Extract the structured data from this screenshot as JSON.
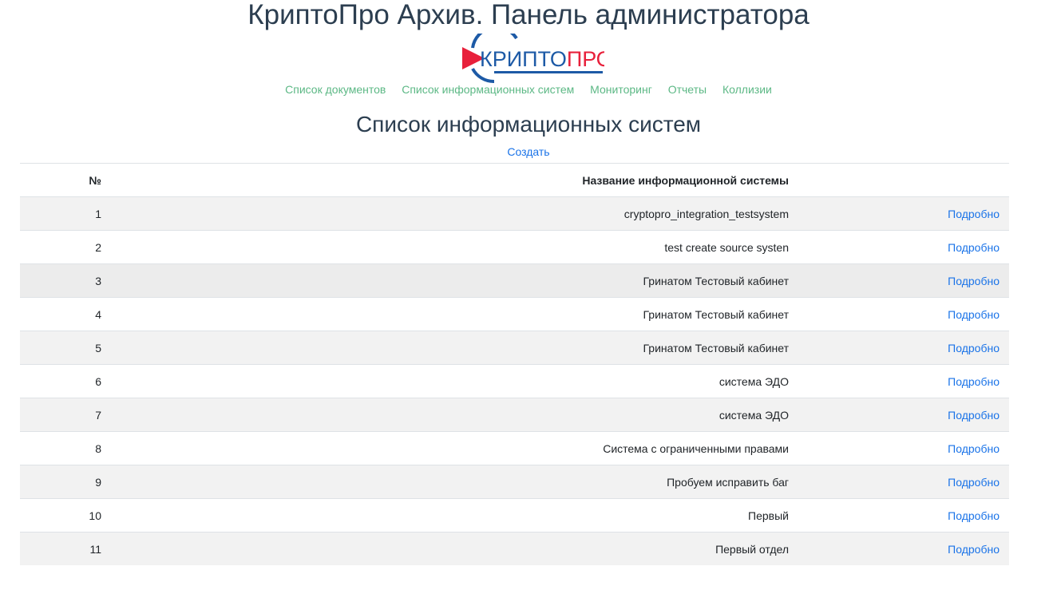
{
  "header": {
    "title": "КриптоПро Архив. Панель администратора",
    "logo_text": "КРИПТОПРО",
    "brand_colors": {
      "blue": "#1d5aa6",
      "red": "#e8203b"
    }
  },
  "nav": {
    "items": [
      {
        "label": "Список документов"
      },
      {
        "label": "Список информационных систем"
      },
      {
        "label": "Мониторинг"
      },
      {
        "label": "Отчеты"
      },
      {
        "label": "Коллизии"
      }
    ]
  },
  "page": {
    "title": "Список информационных систем",
    "create_label": "Создать"
  },
  "table": {
    "headers": [
      "№",
      "Название информационной системы",
      ""
    ],
    "rows": [
      {
        "num": "1",
        "name": "cryptopro_integration_testsystem",
        "link": "Подробно"
      },
      {
        "num": "2",
        "name": "test create source systen",
        "link": "Подробно"
      },
      {
        "num": "3",
        "name": "Гринатом Тестовый кабинет",
        "link": "Подробно"
      },
      {
        "num": "4",
        "name": "Гринатом Тестовый кабинет",
        "link": "Подробно"
      },
      {
        "num": "5",
        "name": "Гринатом Тестовый кабинет",
        "link": "Подробно"
      },
      {
        "num": "6",
        "name": "система ЭДО",
        "link": "Подробно"
      },
      {
        "num": "7",
        "name": "система ЭДО",
        "link": "Подробно"
      },
      {
        "num": "8",
        "name": "Система с ограниченными правами",
        "link": "Подробно"
      },
      {
        "num": "9",
        "name": "Пробуем исправить баг",
        "link": "Подробно"
      },
      {
        "num": "10",
        "name": "Первый",
        "link": "Подробно"
      },
      {
        "num": "11",
        "name": "Первый отдел",
        "link": "Подробно"
      }
    ]
  }
}
